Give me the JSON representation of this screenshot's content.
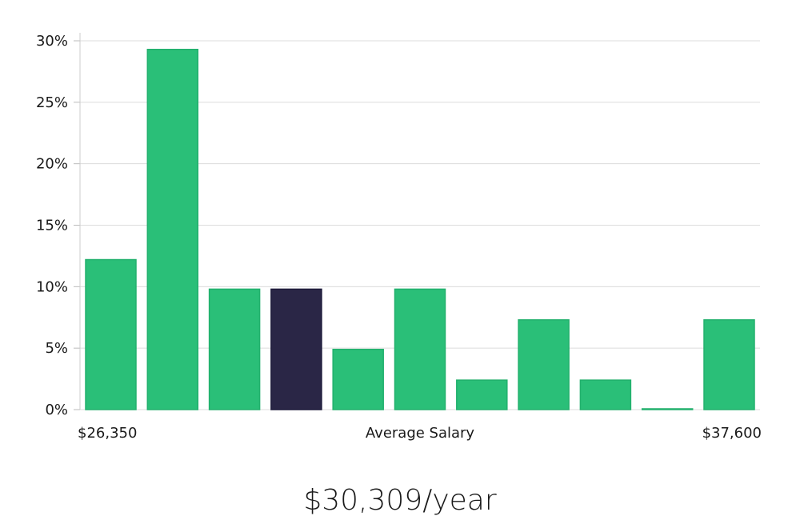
{
  "chart_data": {
    "type": "bar",
    "values": [
      12.2,
      29.3,
      9.8,
      9.8,
      4.9,
      9.8,
      2.4,
      7.3,
      2.4,
      0,
      7.3
    ],
    "highlight_index": 3,
    "colors": {
      "bar": "#2abf78",
      "highlight": "#2a2646",
      "grid": "#dcdcdc"
    },
    "ylim": [
      0,
      30
    ],
    "yticks": [
      "0%",
      "5%",
      "10%",
      "15%",
      "20%",
      "25%",
      "30%"
    ],
    "ytick_values": [
      0,
      5,
      10,
      15,
      20,
      25,
      30
    ],
    "x_min_label": "$26,350",
    "x_max_label": "$37,600",
    "xlabel": "Average Salary",
    "grid": true
  },
  "summary": {
    "salary": "$30,309/year"
  }
}
